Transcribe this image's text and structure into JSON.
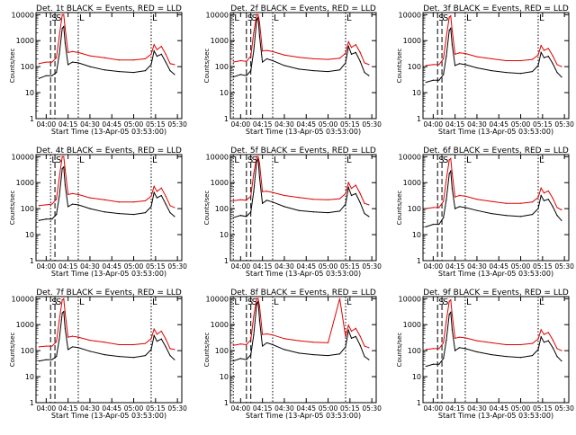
{
  "figure": {
    "xlabel": "Start Time (13-Apr-05 03:53:00)",
    "ylabel": "Counts/sec",
    "x_tick_labels": [
      "04:00",
      "04:15",
      "04:30",
      "04:45",
      "05:00",
      "05:15",
      "05:30"
    ],
    "y_tick_labels": [
      "1",
      "10",
      "100",
      "1000",
      "10000"
    ],
    "series_colors": {
      "events": "#000000",
      "lld": "#e00000"
    }
  },
  "chart_data": [
    {
      "type": "line",
      "title": "Det. 1t BLACK = Events, RED = LLD",
      "markers": [
        "S",
        "S",
        "L"
      ],
      "x": [
        "03:55",
        "04:00",
        "04:04",
        "04:07",
        "04:09",
        "04:11",
        "04:12",
        "04:13",
        "04:15",
        "04:18",
        "04:22",
        "04:30",
        "04:40",
        "04:50",
        "05:00",
        "05:08",
        "05:12",
        "05:14",
        "05:16",
        "05:19",
        "05:22",
        "05:25",
        "05:28"
      ],
      "series": [
        {
          "name": "Events",
          "values": [
            35,
            45,
            45,
            60,
            300,
            3000,
            3500,
            800,
            120,
            150,
            140,
            100,
            75,
            65,
            60,
            70,
            120,
            400,
            250,
            300,
            150,
            70,
            50
          ]
        },
        {
          "name": "LLD",
          "values": [
            130,
            150,
            150,
            220,
            1500,
            10000,
            10000,
            3000,
            350,
            380,
            350,
            260,
            220,
            180,
            180,
            200,
            300,
            700,
            450,
            600,
            300,
            130,
            120
          ]
        }
      ],
      "ylim": [
        1,
        12000
      ],
      "yscale": "log"
    },
    {
      "type": "line",
      "title": "Det. 2f BLACK = Events, RED = LLD",
      "markers": [
        "L",
        "S",
        "S",
        "L"
      ],
      "x": [
        "03:55",
        "04:00",
        "04:04",
        "04:07",
        "04:09",
        "04:11",
        "04:12",
        "04:13",
        "04:15",
        "04:18",
        "04:22",
        "04:30",
        "04:40",
        "04:50",
        "05:00",
        "05:08",
        "05:12",
        "05:14",
        "05:16",
        "05:19",
        "05:22",
        "05:25",
        "05:28"
      ],
      "series": [
        {
          "name": "Events",
          "values": [
            40,
            50,
            45,
            70,
            400,
            6000,
            8000,
            1500,
            150,
            200,
            170,
            110,
            80,
            70,
            65,
            75,
            140,
            600,
            300,
            350,
            160,
            60,
            45
          ]
        },
        {
          "name": "LLD",
          "values": [
            150,
            170,
            160,
            250,
            2000,
            10000,
            10000,
            5000,
            400,
            420,
            380,
            280,
            230,
            200,
            190,
            210,
            330,
            900,
            550,
            700,
            350,
            140,
            120
          ]
        }
      ],
      "ylim": [
        1,
        12000
      ],
      "yscale": "log"
    },
    {
      "type": "line",
      "title": "Det. 3f BLACK = Events, RED = LLD",
      "markers": [
        "S",
        "S",
        "L"
      ],
      "x": [
        "03:55",
        "04:00",
        "04:04",
        "04:07",
        "04:09",
        "04:11",
        "04:12",
        "04:13",
        "04:15",
        "04:18",
        "04:22",
        "04:30",
        "04:40",
        "04:50",
        "05:00",
        "05:08",
        "05:12",
        "05:14",
        "05:16",
        "05:19",
        "05:22",
        "05:25",
        "05:28"
      ],
      "series": [
        {
          "name": "Events",
          "values": [
            25,
            30,
            30,
            50,
            250,
            2500,
            3000,
            700,
            110,
            130,
            120,
            90,
            70,
            60,
            55,
            65,
            110,
            350,
            220,
            250,
            130,
            60,
            40
          ]
        },
        {
          "name": "LLD",
          "values": [
            110,
            120,
            120,
            200,
            1400,
            8000,
            9000,
            2500,
            300,
            340,
            320,
            240,
            200,
            170,
            170,
            190,
            280,
            650,
            420,
            500,
            260,
            120,
            100
          ]
        }
      ],
      "ylim": [
        1,
        12000
      ],
      "yscale": "log"
    },
    {
      "type": "line",
      "title": "Det. 4t BLACK = Events, RED = LLD",
      "markers": [
        "L",
        "S",
        "L"
      ],
      "x": [
        "03:55",
        "04:00",
        "04:04",
        "04:07",
        "04:09",
        "04:11",
        "04:12",
        "04:13",
        "04:15",
        "04:18",
        "04:22",
        "04:30",
        "04:40",
        "04:50",
        "05:00",
        "05:08",
        "05:12",
        "05:14",
        "05:16",
        "05:19",
        "05:22",
        "05:25",
        "05:28"
      ],
      "series": [
        {
          "name": "Events",
          "values": [
            35,
            40,
            40,
            60,
            300,
            3500,
            4000,
            800,
            120,
            150,
            140,
            100,
            75,
            65,
            60,
            70,
            120,
            420,
            260,
            320,
            150,
            70,
            50
          ]
        },
        {
          "name": "LLD",
          "values": [
            130,
            140,
            150,
            230,
            1600,
            10000,
            10000,
            3200,
            350,
            380,
            350,
            260,
            220,
            180,
            180,
            200,
            300,
            720,
            460,
            620,
            300,
            130,
            110
          ]
        }
      ],
      "ylim": [
        1,
        12000
      ],
      "yscale": "log"
    },
    {
      "type": "line",
      "title": "Det. 5f BLACK = Events, RED = LLD",
      "markers": [
        "L",
        "S",
        "S",
        "L"
      ],
      "x": [
        "03:55",
        "04:00",
        "04:04",
        "04:07",
        "04:09",
        "04:11",
        "04:12",
        "04:13",
        "04:15",
        "04:18",
        "04:22",
        "04:30",
        "04:40",
        "04:50",
        "05:00",
        "05:08",
        "05:12",
        "05:14",
        "05:16",
        "05:19",
        "05:22",
        "05:25",
        "05:28"
      ],
      "series": [
        {
          "name": "Events",
          "values": [
            45,
            55,
            50,
            75,
            450,
            6500,
            8500,
            1600,
            160,
            210,
            180,
            120,
            85,
            75,
            70,
            80,
            150,
            650,
            320,
            380,
            170,
            65,
            50
          ]
        },
        {
          "name": "LLD",
          "values": [
            200,
            220,
            210,
            300,
            2200,
            10000,
            10000,
            5500,
            450,
            470,
            420,
            320,
            270,
            230,
            220,
            240,
            380,
            1000,
            600,
            800,
            380,
            160,
            140
          ]
        }
      ],
      "ylim": [
        1,
        12000
      ],
      "yscale": "log"
    },
    {
      "type": "line",
      "title": "Det. 6f BLACK = Events, RED = LLD",
      "markers": [
        "S",
        "S",
        "L"
      ],
      "x": [
        "03:55",
        "04:00",
        "04:04",
        "04:07",
        "04:09",
        "04:11",
        "04:12",
        "04:13",
        "04:15",
        "04:18",
        "04:22",
        "04:30",
        "04:40",
        "04:50",
        "05:00",
        "05:08",
        "05:12",
        "05:14",
        "05:16",
        "05:19",
        "05:22",
        "05:25",
        "05:28"
      ],
      "series": [
        {
          "name": "Events",
          "values": [
            20,
            25,
            25,
            45,
            220,
            2200,
            2800,
            600,
            100,
            120,
            110,
            85,
            65,
            55,
            50,
            60,
            100,
            320,
            200,
            230,
            120,
            55,
            35
          ]
        },
        {
          "name": "LLD",
          "values": [
            100,
            110,
            110,
            190,
            1300,
            7500,
            8500,
            2300,
            280,
            320,
            300,
            230,
            190,
            160,
            160,
            180,
            270,
            620,
            400,
            480,
            250,
            110,
            90
          ]
        }
      ],
      "ylim": [
        1,
        12000
      ],
      "yscale": "log"
    },
    {
      "type": "line",
      "title": "Det. 7f BLACK = Events, RED = LLD",
      "markers": [
        "S",
        "S",
        "L"
      ],
      "x": [
        "03:55",
        "04:00",
        "04:04",
        "04:07",
        "04:09",
        "04:11",
        "04:12",
        "04:13",
        "04:15",
        "04:18",
        "04:22",
        "04:30",
        "04:40",
        "04:50",
        "05:00",
        "05:08",
        "05:12",
        "05:14",
        "05:16",
        "05:19",
        "05:22",
        "05:25",
        "05:28"
      ],
      "series": [
        {
          "name": "Events",
          "values": [
            40,
            45,
            45,
            60,
            280,
            2800,
            3200,
            700,
            110,
            140,
            130,
            95,
            70,
            60,
            55,
            65,
            110,
            380,
            230,
            280,
            140,
            65,
            45
          ]
        },
        {
          "name": "LLD",
          "values": [
            140,
            150,
            150,
            220,
            1500,
            9000,
            10000,
            2800,
            330,
            360,
            330,
            250,
            210,
            170,
            170,
            190,
            290,
            680,
            430,
            560,
            280,
            120,
            110
          ]
        }
      ],
      "ylim": [
        1,
        12000
      ],
      "yscale": "log"
    },
    {
      "type": "line",
      "title": "Det. 8f BLACK = Events, RED = LLD",
      "markers": [
        "L",
        "S",
        "S",
        "L"
      ],
      "x": [
        "03:55",
        "04:00",
        "04:04",
        "04:07",
        "04:09",
        "04:11",
        "04:12",
        "04:13",
        "04:15",
        "04:18",
        "04:22",
        "04:30",
        "04:40",
        "04:50",
        "05:00",
        "05:08",
        "05:12",
        "05:14",
        "05:16",
        "05:19",
        "05:22",
        "05:25",
        "05:28"
      ],
      "series": [
        {
          "name": "Events",
          "values": [
            40,
            50,
            45,
            70,
            400,
            6000,
            8000,
            1500,
            150,
            200,
            170,
            110,
            80,
            70,
            65,
            75,
            140,
            600,
            300,
            350,
            160,
            60,
            45
          ]
        },
        {
          "name": "LLD",
          "values": [
            160,
            180,
            170,
            260,
            2100,
            10000,
            10000,
            5200,
            420,
            440,
            400,
            290,
            240,
            210,
            200,
            10000,
            340,
            950,
            560,
            720,
            360,
            150,
            130
          ]
        }
      ],
      "ylim": [
        1,
        12000
      ],
      "yscale": "log"
    },
    {
      "type": "line",
      "title": "Det. 9f BLACK = Events, RED = LLD",
      "markers": [
        "S",
        "S",
        "L"
      ],
      "x": [
        "03:55",
        "04:00",
        "04:04",
        "04:07",
        "04:09",
        "04:11",
        "04:12",
        "04:13",
        "04:15",
        "04:18",
        "04:22",
        "04:30",
        "04:40",
        "04:50",
        "05:00",
        "05:08",
        "05:12",
        "05:14",
        "05:16",
        "05:19",
        "05:22",
        "05:25",
        "05:28"
      ],
      "series": [
        {
          "name": "Events",
          "values": [
            25,
            30,
            30,
            50,
            250,
            2500,
            3000,
            650,
            100,
            130,
            120,
            90,
            70,
            60,
            55,
            65,
            110,
            340,
            210,
            240,
            130,
            60,
            40
          ]
        },
        {
          "name": "LLD",
          "values": [
            110,
            120,
            120,
            200,
            1400,
            8000,
            9000,
            2400,
            300,
            330,
            310,
            240,
            200,
            170,
            170,
            190,
            280,
            640,
            420,
            500,
            260,
            120,
            100
          ]
        }
      ],
      "ylim": [
        1,
        12000
      ],
      "yscale": "log"
    }
  ]
}
